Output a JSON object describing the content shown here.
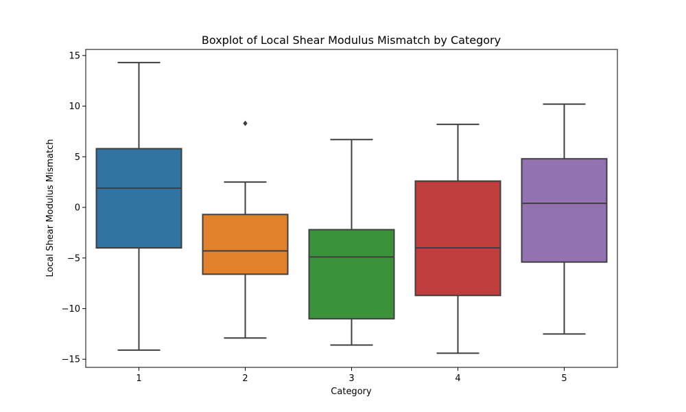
{
  "chart_data": {
    "type": "box",
    "title": "Boxplot of Local Shear Modulus Mismatch by Category",
    "xlabel": "Category",
    "ylabel": "Local Shear Modulus Mismatch",
    "ylim": [
      -15.8,
      15.6
    ],
    "yticks": [
      "15",
      "10",
      "5",
      "0",
      "−5",
      "−10",
      "−15"
    ],
    "ytick_values": [
      15,
      10,
      5,
      0,
      -5,
      -10,
      -15
    ],
    "grid": false,
    "legend": "none",
    "categories": [
      "1",
      "2",
      "3",
      "4",
      "5"
    ],
    "boxes": [
      {
        "category": "1",
        "whisker_low": -14.1,
        "q1": -4.0,
        "median": 1.9,
        "q3": 5.8,
        "whisker_high": 14.3,
        "outliers": [],
        "color": "#3274a1"
      },
      {
        "category": "2",
        "whisker_low": -12.9,
        "q1": -6.6,
        "median": -4.3,
        "q3": -0.7,
        "whisker_high": 2.5,
        "outliers": [
          8.3
        ],
        "color": "#e1812c"
      },
      {
        "category": "3",
        "whisker_low": -13.6,
        "q1": -11.0,
        "median": -4.9,
        "q3": -2.2,
        "whisker_high": 6.7,
        "outliers": [],
        "color": "#3a923a"
      },
      {
        "category": "4",
        "whisker_low": -14.4,
        "q1": -8.7,
        "median": -4.0,
        "q3": 2.6,
        "whisker_high": 8.2,
        "outliers": [],
        "color": "#c03d3e"
      },
      {
        "category": "5",
        "whisker_low": -12.5,
        "q1": -5.4,
        "median": 0.4,
        "q3": 4.8,
        "whisker_high": 10.2,
        "outliers": [],
        "color": "#9372b2"
      }
    ],
    "line_color": "#3f3f3f"
  }
}
